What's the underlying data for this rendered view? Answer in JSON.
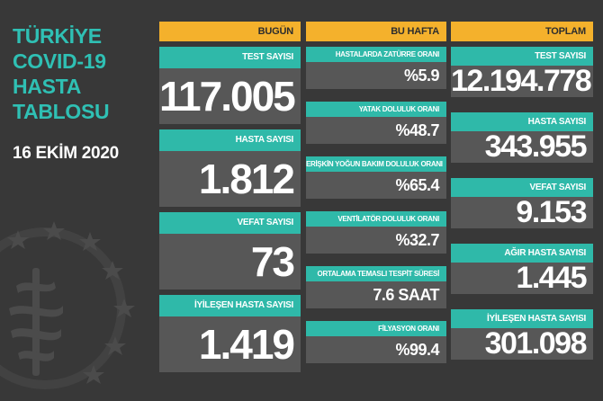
{
  "title": {
    "line1": "TÜRKİYE",
    "line2": "COVID-19",
    "line3": "HASTA",
    "line4": "TABLOSU"
  },
  "date": "16 EKİM 2020",
  "today": {
    "header": "BUGÜN",
    "items": [
      {
        "label": "TEST SAYISI",
        "value": "117.005"
      },
      {
        "label": "HASTA SAYISI",
        "value": "1.812"
      },
      {
        "label": "VEFAT SAYISI",
        "value": "73"
      },
      {
        "label": "İYİLEŞEN HASTA SAYISI",
        "value": "1.419"
      }
    ]
  },
  "week": {
    "header": "BU HAFTA",
    "items": [
      {
        "label": "HASTALARDA ZATÜRRE ORANI",
        "value": "%5.9"
      },
      {
        "label": "YATAK DOLULUK ORANI",
        "value": "%48.7"
      },
      {
        "label": "ERİŞKİN YOĞUN BAKIM DOLULUK ORANI",
        "value": "%65.4"
      },
      {
        "label": "VENTİLATÖR DOLULUK ORANI",
        "value": "%32.7"
      },
      {
        "label": "ORTALAMA TEMASLI TESPİT SÜRESİ",
        "value": "7.6 SAAT"
      },
      {
        "label": "FİLYASYON ORANI",
        "value": "%99.4"
      }
    ]
  },
  "total": {
    "header": "TOPLAM",
    "items": [
      {
        "label": "TEST SAYISI",
        "value": "12.194.778"
      },
      {
        "label": "HASTA SAYISI",
        "value": "343.955"
      },
      {
        "label": "VEFAT SAYISI",
        "value": "9.153"
      },
      {
        "label": "AĞIR HASTA SAYISI",
        "value": "1.445"
      },
      {
        "label": "İYİLEŞEN HASTA SAYISI",
        "value": "301.098"
      }
    ]
  },
  "colors": {
    "background": "#383838",
    "teal": "#2fb9a9",
    "title_teal": "#2fc0b4",
    "header_yellow": "#f4b12c",
    "value_box": "#575757"
  }
}
